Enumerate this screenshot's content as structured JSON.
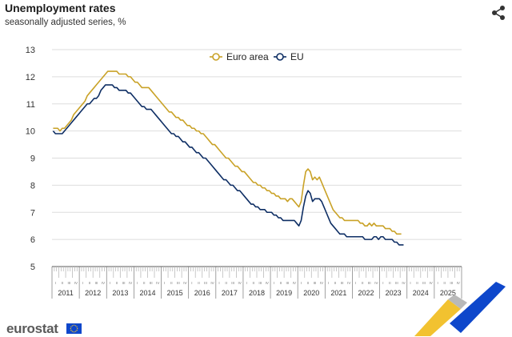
{
  "title": "Unemployment rates",
  "subtitle": "seasonally adjusted series, %",
  "footer": {
    "logo_text": "eurostat"
  },
  "icons": {
    "share": "share-icon",
    "flag": "eu-flag-icon"
  },
  "colors": {
    "euro_area": "#C9A227",
    "eu": "#0E2E64",
    "grid": "#DDDDDD",
    "deco_blue": "#0E47CB",
    "deco_yellow": "#F2C230",
    "deco_grey": "#B9B9B9"
  },
  "chart_data": {
    "type": "line",
    "x_start": "2011-01",
    "x_end": "2025-12",
    "x_frequency": "monthly",
    "xlim": [
      "2011-01",
      "2025-12"
    ],
    "ylim": [
      5,
      13
    ],
    "y_ticks": [
      5,
      6,
      7,
      8,
      9,
      10,
      11,
      12,
      13
    ],
    "year_labels": [
      "2011",
      "2012",
      "2013",
      "2014",
      "2015",
      "2016",
      "2017",
      "2018",
      "2019",
      "2020",
      "2021",
      "2022",
      "2023",
      "2024",
      "2025"
    ],
    "quarter_labels": [
      "I",
      "II",
      "III",
      "IV"
    ],
    "grid": "horizontal",
    "legend": "top-center",
    "series": [
      {
        "name": "Euro area",
        "values": [
          10.1,
          10.1,
          10.1,
          10.0,
          10.1,
          10.1,
          10.2,
          10.3,
          10.4,
          10.6,
          10.7,
          10.8,
          10.9,
          11.0,
          11.1,
          11.3,
          11.4,
          11.5,
          11.6,
          11.7,
          11.8,
          11.9,
          12.0,
          12.1,
          12.2,
          12.2,
          12.2,
          12.2,
          12.2,
          12.1,
          12.1,
          12.1,
          12.1,
          12.0,
          12.0,
          11.9,
          11.8,
          11.8,
          11.7,
          11.6,
          11.6,
          11.6,
          11.6,
          11.5,
          11.4,
          11.3,
          11.2,
          11.1,
          11.0,
          10.9,
          10.8,
          10.7,
          10.7,
          10.6,
          10.5,
          10.5,
          10.4,
          10.4,
          10.3,
          10.2,
          10.2,
          10.1,
          10.1,
          10.0,
          10.0,
          9.9,
          9.9,
          9.8,
          9.7,
          9.6,
          9.5,
          9.5,
          9.4,
          9.3,
          9.2,
          9.1,
          9.0,
          9.0,
          8.9,
          8.8,
          8.7,
          8.7,
          8.6,
          8.5,
          8.5,
          8.4,
          8.3,
          8.2,
          8.1,
          8.1,
          8.0,
          8.0,
          7.9,
          7.9,
          7.8,
          7.8,
          7.7,
          7.7,
          7.6,
          7.6,
          7.5,
          7.5,
          7.5,
          7.4,
          7.5,
          7.5,
          7.4,
          7.3,
          7.2,
          7.4,
          8.0,
          8.5,
          8.6,
          8.5,
          8.2,
          8.3,
          8.2,
          8.3,
          8.1,
          7.9,
          7.7,
          7.5,
          7.3,
          7.1,
          7.0,
          6.9,
          6.8,
          6.8,
          6.7,
          6.7,
          6.7,
          6.7,
          6.7,
          6.7,
          6.7,
          6.6,
          6.6,
          6.5,
          6.5,
          6.6,
          6.5,
          6.6,
          6.5,
          6.5,
          6.5,
          6.5,
          6.4,
          6.4,
          6.4,
          6.3,
          6.3,
          6.2,
          6.2,
          6.2
        ]
      },
      {
        "name": "EU",
        "values": [
          10.0,
          9.9,
          9.9,
          9.9,
          9.9,
          10.0,
          10.1,
          10.2,
          10.3,
          10.4,
          10.5,
          10.6,
          10.7,
          10.8,
          10.9,
          11.0,
          11.0,
          11.1,
          11.2,
          11.2,
          11.3,
          11.5,
          11.6,
          11.7,
          11.7,
          11.7,
          11.7,
          11.6,
          11.6,
          11.5,
          11.5,
          11.5,
          11.5,
          11.4,
          11.4,
          11.3,
          11.2,
          11.1,
          11.0,
          10.9,
          10.9,
          10.8,
          10.8,
          10.8,
          10.7,
          10.6,
          10.5,
          10.4,
          10.3,
          10.2,
          10.1,
          10.0,
          9.9,
          9.9,
          9.8,
          9.8,
          9.7,
          9.6,
          9.6,
          9.5,
          9.4,
          9.4,
          9.3,
          9.2,
          9.2,
          9.1,
          9.0,
          9.0,
          8.9,
          8.8,
          8.7,
          8.6,
          8.5,
          8.4,
          8.3,
          8.2,
          8.2,
          8.1,
          8.0,
          8.0,
          7.9,
          7.8,
          7.8,
          7.7,
          7.6,
          7.5,
          7.4,
          7.3,
          7.3,
          7.2,
          7.2,
          7.1,
          7.1,
          7.1,
          7.0,
          7.0,
          7.0,
          6.9,
          6.9,
          6.8,
          6.8,
          6.7,
          6.7,
          6.7,
          6.7,
          6.7,
          6.7,
          6.6,
          6.5,
          6.7,
          7.2,
          7.6,
          7.8,
          7.7,
          7.4,
          7.5,
          7.5,
          7.5,
          7.4,
          7.2,
          7.0,
          6.8,
          6.6,
          6.5,
          6.4,
          6.3,
          6.2,
          6.2,
          6.2,
          6.1,
          6.1,
          6.1,
          6.1,
          6.1,
          6.1,
          6.1,
          6.1,
          6.0,
          6.0,
          6.0,
          6.0,
          6.1,
          6.1,
          6.0,
          6.1,
          6.1,
          6.0,
          6.0,
          6.0,
          6.0,
          5.9,
          5.9,
          5.8,
          5.8,
          5.8
        ]
      }
    ]
  }
}
